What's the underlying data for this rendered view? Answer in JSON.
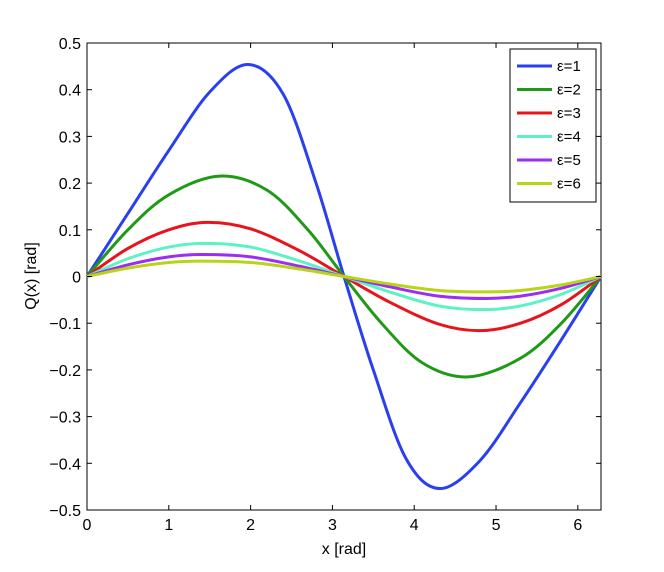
{
  "chart_data": {
    "type": "line",
    "title": "",
    "xlabel": "x  [rad]",
    "ylabel": "Q(x)  [rad]",
    "xlim": [
      0,
      6.2832
    ],
    "ylim": [
      -0.5,
      0.5
    ],
    "xticks": [
      0,
      1,
      2,
      3,
      4,
      5,
      6
    ],
    "xtick_labels": [
      "0",
      "1",
      "2",
      "3",
      "4",
      "5",
      "6"
    ],
    "yticks": [
      0.5,
      0.4,
      0.3,
      0.2,
      0.1,
      0,
      -0.1,
      -0.2,
      -0.3,
      -0.4,
      -0.5
    ],
    "ytick_labels": [
      "0.5",
      "0.4",
      "0.3",
      "0.2",
      "0.1",
      "0",
      "−0.1",
      "−0.2",
      "−0.3",
      "−0.4",
      "−0.5"
    ],
    "grid": false,
    "legend_position": "top-right",
    "series": [
      {
        "name": "ε=1",
        "color": "#2a3ff0",
        "peak": 0.454,
        "peak_x": 1.97,
        "points": [
          [
            0,
            0
          ],
          [
            0.5,
            0.135
          ],
          [
            1.0,
            0.27
          ],
          [
            1.5,
            0.395
          ],
          [
            1.97,
            0.454
          ],
          [
            2.4,
            0.39
          ],
          [
            2.8,
            0.2
          ],
          [
            3.1416,
            0
          ],
          [
            3.5,
            -0.2
          ],
          [
            3.9,
            -0.39
          ],
          [
            4.31,
            -0.454
          ],
          [
            4.8,
            -0.395
          ],
          [
            5.3,
            -0.27
          ],
          [
            5.8,
            -0.135
          ],
          [
            6.2832,
            0
          ]
        ]
      },
      {
        "name": "ε=2",
        "color": "#1f9a16",
        "peak": 0.215,
        "peak_x": 1.62,
        "points": [
          [
            0,
            0
          ],
          [
            0.5,
            0.1
          ],
          [
            1.0,
            0.175
          ],
          [
            1.62,
            0.215
          ],
          [
            2.2,
            0.185
          ],
          [
            2.7,
            0.1
          ],
          [
            3.1416,
            0
          ],
          [
            3.6,
            -0.1
          ],
          [
            4.1,
            -0.185
          ],
          [
            4.66,
            -0.215
          ],
          [
            5.3,
            -0.175
          ],
          [
            5.8,
            -0.1
          ],
          [
            6.2832,
            0
          ]
        ]
      },
      {
        "name": "ε=3",
        "color": "#e8141c",
        "peak": 0.116,
        "peak_x": 1.47,
        "points": [
          [
            0,
            0
          ],
          [
            0.5,
            0.06
          ],
          [
            1.0,
            0.1
          ],
          [
            1.47,
            0.116
          ],
          [
            2.0,
            0.102
          ],
          [
            2.6,
            0.055
          ],
          [
            3.1416,
            0
          ],
          [
            3.7,
            -0.055
          ],
          [
            4.3,
            -0.102
          ],
          [
            4.81,
            -0.116
          ],
          [
            5.3,
            -0.1
          ],
          [
            5.8,
            -0.06
          ],
          [
            6.2832,
            0
          ]
        ]
      },
      {
        "name": "ε=4",
        "color": "#5cf2c4",
        "peak": 0.071,
        "peak_x": 1.43,
        "points": [
          [
            0,
            0
          ],
          [
            0.5,
            0.038
          ],
          [
            1.0,
            0.063
          ],
          [
            1.43,
            0.071
          ],
          [
            2.0,
            0.063
          ],
          [
            2.6,
            0.033
          ],
          [
            3.1416,
            0
          ],
          [
            3.7,
            -0.033
          ],
          [
            4.3,
            -0.063
          ],
          [
            4.85,
            -0.071
          ],
          [
            5.3,
            -0.063
          ],
          [
            5.8,
            -0.038
          ],
          [
            6.2832,
            0
          ]
        ]
      },
      {
        "name": "ε=5",
        "color": "#9c2ef0",
        "peak": 0.047,
        "peak_x": 1.4,
        "points": [
          [
            0,
            0
          ],
          [
            0.5,
            0.025
          ],
          [
            1.0,
            0.042
          ],
          [
            1.4,
            0.047
          ],
          [
            2.0,
            0.042
          ],
          [
            2.6,
            0.022
          ],
          [
            3.1416,
            0
          ],
          [
            3.7,
            -0.022
          ],
          [
            4.3,
            -0.042
          ],
          [
            4.88,
            -0.047
          ],
          [
            5.3,
            -0.042
          ],
          [
            5.8,
            -0.025
          ],
          [
            6.2832,
            0
          ]
        ]
      },
      {
        "name": "ε=6",
        "color": "#b7d416",
        "peak": 0.033,
        "peak_x": 1.38,
        "points": [
          [
            0,
            0
          ],
          [
            0.5,
            0.018
          ],
          [
            1.0,
            0.03
          ],
          [
            1.38,
            0.033
          ],
          [
            2.0,
            0.03
          ],
          [
            2.6,
            0.016
          ],
          [
            3.1416,
            0
          ],
          [
            3.7,
            -0.016
          ],
          [
            4.3,
            -0.03
          ],
          [
            4.9,
            -0.033
          ],
          [
            5.3,
            -0.03
          ],
          [
            5.8,
            -0.018
          ],
          [
            6.2832,
            0
          ]
        ]
      }
    ]
  }
}
